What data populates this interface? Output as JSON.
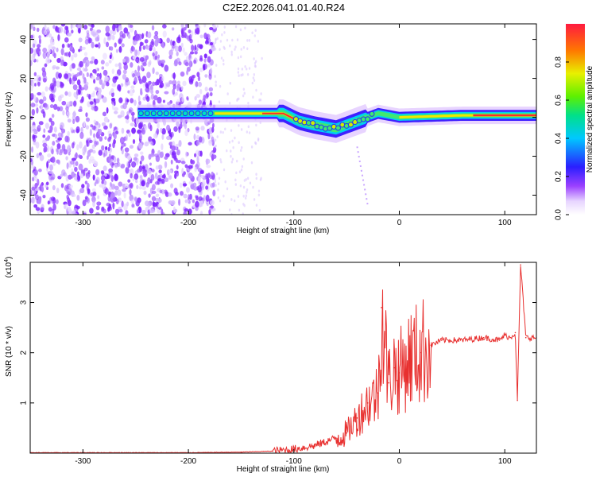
{
  "title": "C2E2.2026.041.01.40.R24",
  "chart_data": [
    {
      "type": "heatmap",
      "xlabel": "Height of straight line (km)",
      "ylabel": "Frequency (Hz)",
      "xlim": [
        -350,
        130
      ],
      "ylim": [
        -50,
        48
      ],
      "xticks": [
        -300,
        -200,
        -100,
        0,
        100
      ],
      "xtick_labels": [
        "-300",
        "-200",
        "-100",
        "0",
        "100"
      ],
      "yticks": [
        -40,
        -20,
        0,
        20,
        40
      ],
      "ytick_labels": [
        "-40",
        "-20",
        "0",
        "20",
        "40"
      ],
      "colorbar": {
        "label": "Normalized spectral amplitude",
        "range": [
          0,
          1
        ],
        "ticks": [
          0.0,
          0.2,
          0.4,
          0.6,
          0.8
        ],
        "tick_labels": [
          "0.0",
          "0.2",
          "0.4",
          "0.6",
          "0.8"
        ]
      },
      "ridge": [
        {
          "x": -245,
          "f": 2
        },
        {
          "x": -175,
          "f": 2
        },
        {
          "x": -110,
          "f": 2
        },
        {
          "x": -95,
          "f": -2
        },
        {
          "x": -80,
          "f": -4
        },
        {
          "x": -60,
          "f": -6
        },
        {
          "x": -40,
          "f": -2
        },
        {
          "x": -20,
          "f": 2
        },
        {
          "x": 0,
          "f": 0
        },
        {
          "x": 60,
          "f": 1
        },
        {
          "x": 130,
          "f": 1
        }
      ]
    },
    {
      "type": "line",
      "xlabel": "Height of straight line (km)",
      "ylabel": "SNR (10 * v/v)",
      "yscale_label": "(x10",
      "yscale_exp": "4",
      "yscale_close": ")",
      "xlim": [
        -350,
        130
      ],
      "ylim": [
        0,
        3.8
      ],
      "xticks": [
        -300,
        -200,
        -100,
        0,
        100
      ],
      "xtick_labels": [
        "-300",
        "-200",
        "-100",
        "0",
        "100"
      ],
      "yticks": [
        1,
        2,
        3
      ],
      "ytick_labels": [
        "1",
        "2",
        "3"
      ],
      "color": "#e8302f",
      "series": [
        {
          "name": "SNR",
          "x": [
            -350,
            -300,
            -250,
            -200,
            -150,
            -120,
            -100,
            -80,
            -60,
            -50,
            -40,
            -30,
            -20,
            -17,
            -10,
            -5,
            0,
            10,
            20,
            30,
            40,
            60,
            80,
            95,
            100,
            105,
            110,
            112,
            115,
            120,
            130
          ],
          "y": [
            0.01,
            0.01,
            0.01,
            0.01,
            0.02,
            0.04,
            0.08,
            0.15,
            0.3,
            0.4,
            0.7,
            1.0,
            1.2,
            2.9,
            1.4,
            1.7,
            1.6,
            1.9,
            2.0,
            2.15,
            2.25,
            2.25,
            2.3,
            2.25,
            2.35,
            2.3,
            2.4,
            1.05,
            3.75,
            2.3,
            2.3
          ]
        }
      ]
    }
  ]
}
